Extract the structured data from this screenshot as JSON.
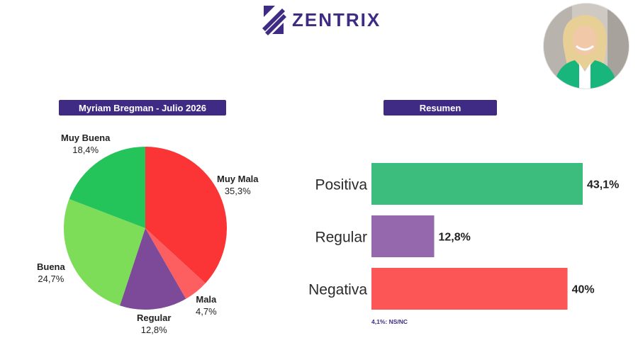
{
  "brand": {
    "name": "ZENTRIX",
    "color": "#3f2b84"
  },
  "portrait": {
    "alt": ""
  },
  "footnote": "4,1%: NS/NC",
  "chart_data": [
    {
      "type": "pie",
      "title": "Myriam Bregman - Julio 2026",
      "slices": [
        {
          "label": "Muy Mala",
          "value": 35.3,
          "display": "35,3%",
          "color": "#fb3536"
        },
        {
          "label": "Mala",
          "value": 4.7,
          "display": "4,7%",
          "color": "#fd5e5f"
        },
        {
          "label": "Regular",
          "value": 12.8,
          "display": "12,8%",
          "color": "#7c4a99"
        },
        {
          "label": "Buena",
          "value": 24.7,
          "display": "24,7%",
          "color": "#7ddc58"
        },
        {
          "label": "Muy Buena",
          "value": 18.4,
          "display": "18,4%",
          "color": "#24c45a"
        }
      ]
    },
    {
      "type": "bar",
      "orientation": "horizontal",
      "title": "Resumen",
      "categories": [
        "Positiva",
        "Regular",
        "Negativa"
      ],
      "values": [
        43.1,
        12.8,
        40
      ],
      "value_labels": [
        "43,1%",
        "12,8%",
        "40%"
      ],
      "colors": [
        "#3dbd7d",
        "#9567ac",
        "#fd5657"
      ],
      "xlim": [
        0,
        43.1
      ]
    }
  ]
}
